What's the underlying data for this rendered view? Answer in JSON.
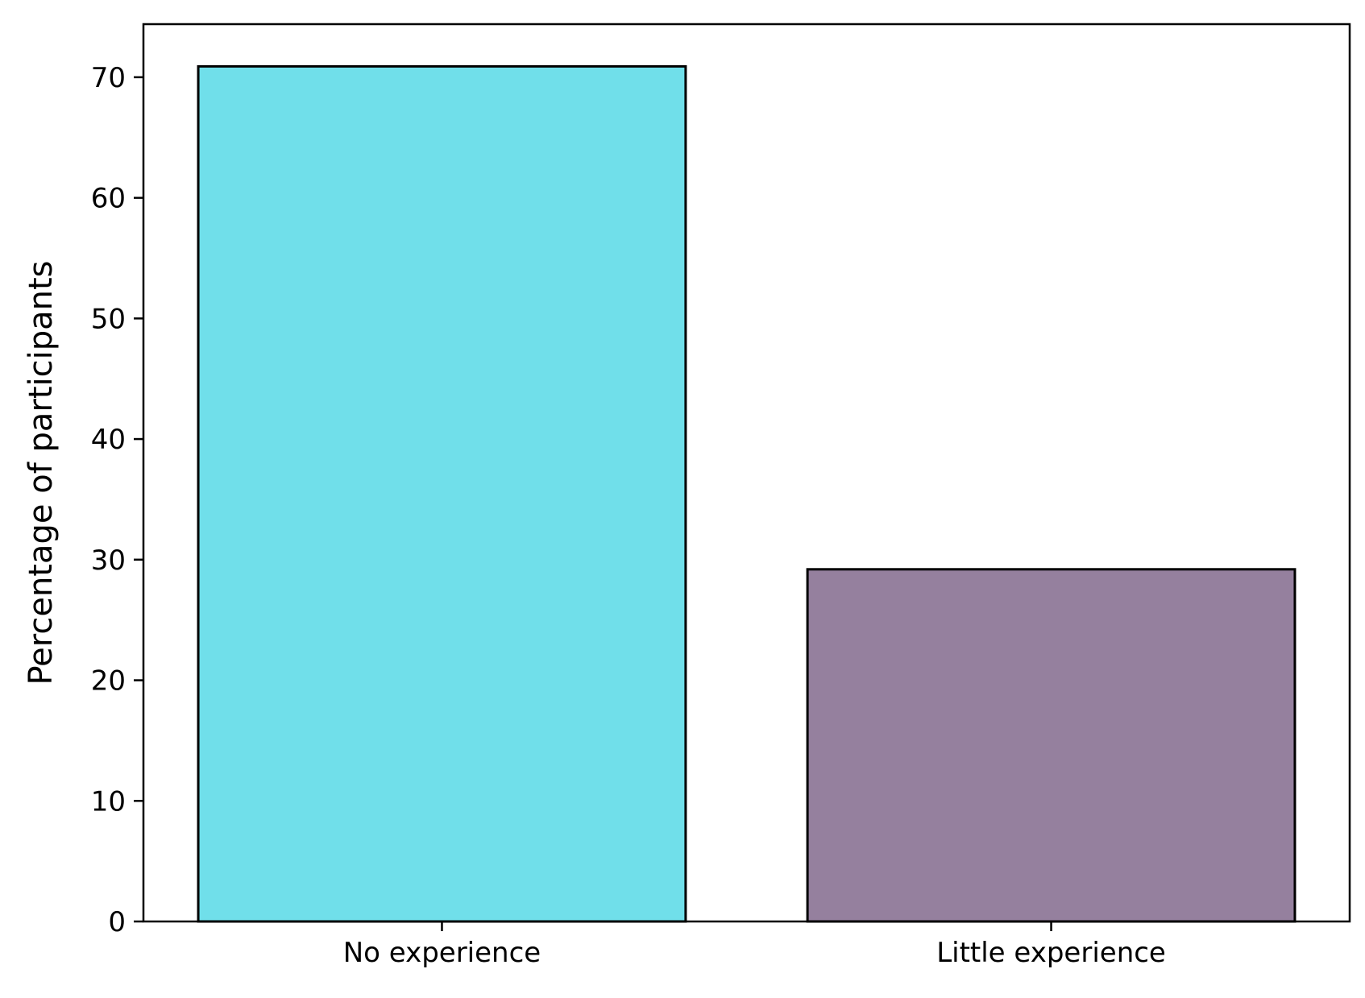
{
  "chart_data": {
    "type": "bar",
    "title": "",
    "xlabel": "",
    "ylabel": "Percentage of participants",
    "categories": [
      "No experience",
      "Little experience"
    ],
    "values": [
      70.9,
      29.2
    ],
    "colors": [
      "#70dfea",
      "#95809e"
    ],
    "edge_color": "#000000",
    "ylim": [
      0,
      74.4
    ],
    "yticks": [
      0,
      10,
      20,
      30,
      40,
      50,
      60,
      70
    ],
    "grid": false,
    "legend": "none"
  }
}
